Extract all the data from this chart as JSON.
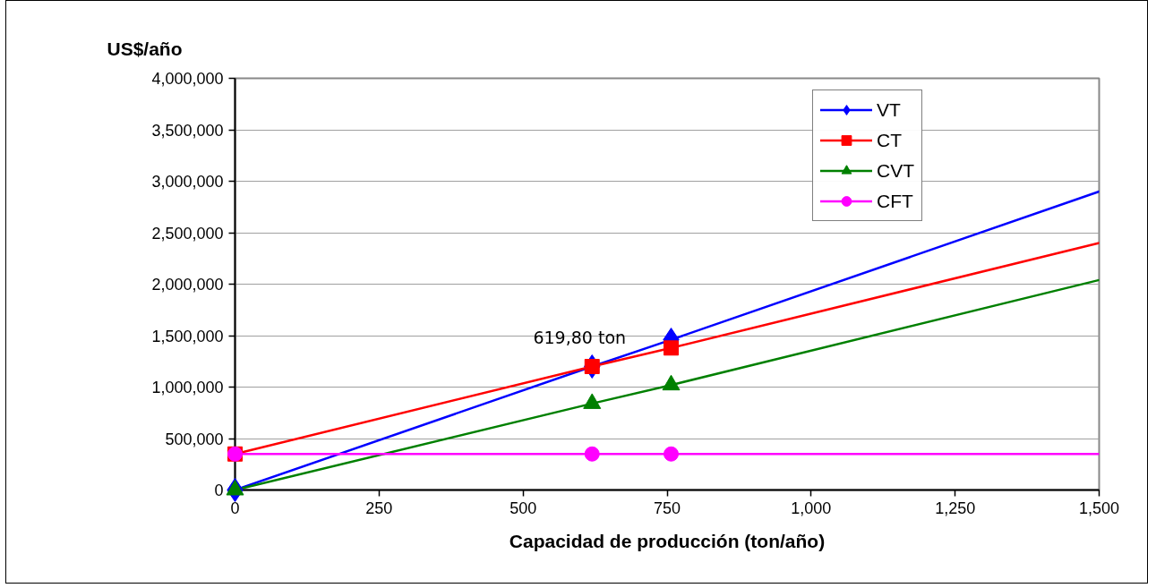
{
  "chart_data": {
    "type": "line",
    "xlabel": "Capacidad de producción (ton/año)",
    "ylabel": "US$/año",
    "xlim": [
      0,
      1500
    ],
    "xticks": [
      0,
      250,
      500,
      750,
      {
        "value": 1000,
        "label": "1,000"
      },
      {
        "value": 1250,
        "label": "1,250"
      },
      {
        "value": 1500,
        "label": "1,500"
      }
    ],
    "ylim": [
      0,
      4000000
    ],
    "yticks": [
      0,
      {
        "value": 500000,
        "label": "500,000"
      },
      {
        "value": 1000000,
        "label": "1,000,000"
      },
      {
        "value": 1500000,
        "label": "1,500,000"
      },
      {
        "value": 2000000,
        "label": "2,000,000"
      },
      {
        "value": 2500000,
        "label": "2,500,000"
      },
      {
        "value": 3000000,
        "label": "3,000,000"
      },
      {
        "value": 3500000,
        "label": "3,500,000"
      },
      {
        "value": 4000000,
        "label": "4,000,000"
      }
    ],
    "grid": "y",
    "legend": "top right",
    "line_style": "solid",
    "series": [
      {
        "name": "VT",
        "color": "#0000ff",
        "marker": "diamond",
        "x": [
          0,
          619.8,
          757
        ],
        "values": [
          0,
          1200000,
          1460000
        ]
      },
      {
        "name": "CT",
        "color": "#ff0000",
        "marker": "square",
        "x": [
          0,
          619.8,
          757
        ],
        "values": [
          350000,
          1200000,
          1380000
        ]
      },
      {
        "name": "CVT",
        "color": "#008000",
        "marker": "triangle",
        "x": [
          0,
          619.8,
          757
        ],
        "values": [
          0,
          840000,
          1020000
        ]
      },
      {
        "name": "CFT",
        "color": "#ff00ff",
        "marker": "circle",
        "x": [
          0,
          619.8,
          757
        ],
        "values": [
          350000,
          350000,
          350000
        ]
      },
      {
        "color": "#0000ff",
        "marker": "none",
        "x": [
          757,
          1500
        ],
        "values": [
          1460000,
          2900000
        ]
      },
      {
        "color": "#ff0000",
        "marker": "none",
        "x": [
          757,
          1500
        ],
        "values": [
          1380000,
          2400000
        ]
      },
      {
        "color": "#008000",
        "marker": "none",
        "x": [
          757,
          1500
        ],
        "values": [
          1020000,
          2040000
        ]
      },
      {
        "color": "#ff00ff",
        "marker": "none",
        "x": [
          757,
          1500
        ],
        "values": [
          350000,
          350000
        ]
      }
    ],
    "annotations": [
      {
        "text": "619,80 ton",
        "x": 619.8,
        "y": 1200000
      }
    ]
  }
}
